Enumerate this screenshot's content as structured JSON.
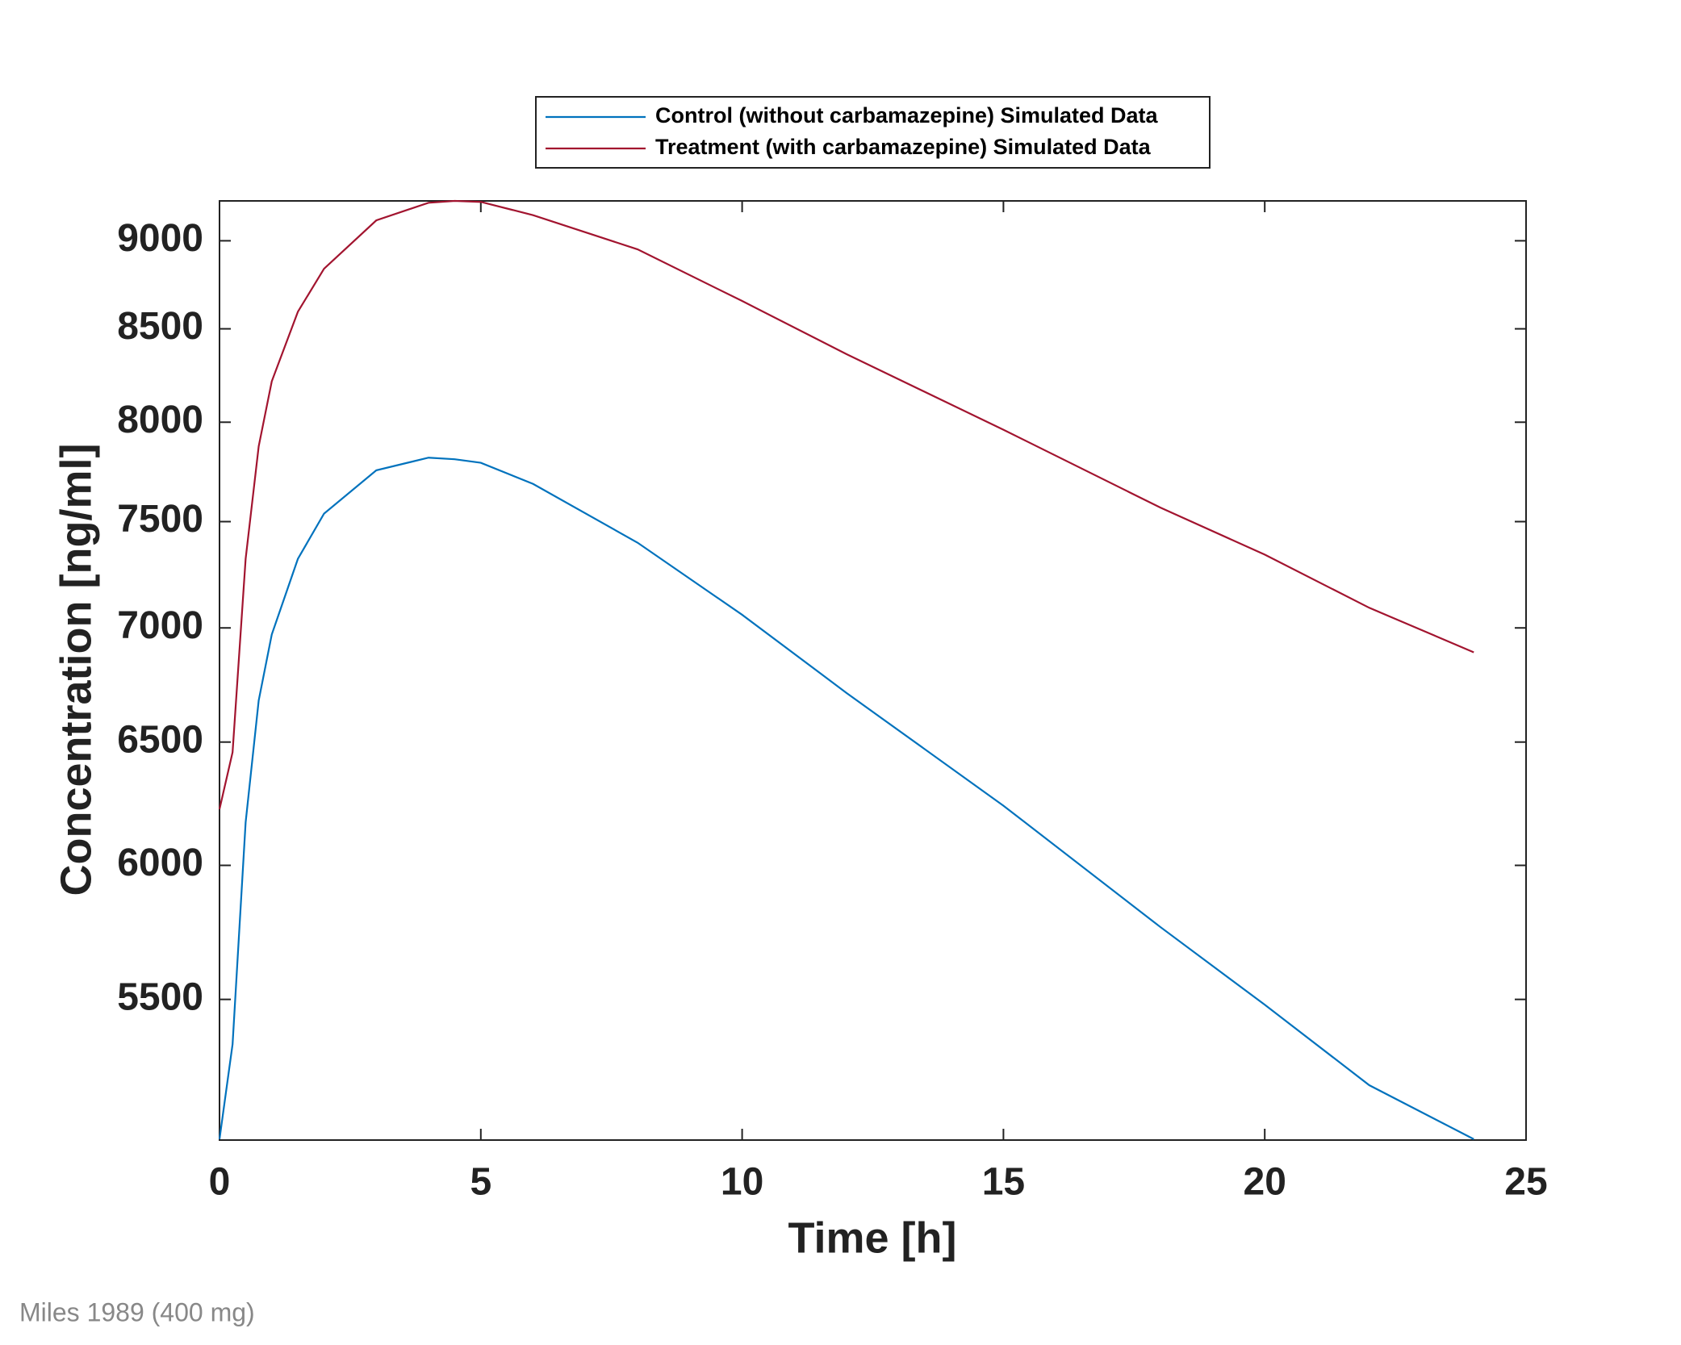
{
  "chart_data": {
    "type": "line",
    "xlabel": "Time [h]",
    "ylabel": "Concentration [ng/ml]",
    "footnote": "Miles 1989 (400 mg)",
    "x": [
      0,
      0.25,
      0.5,
      0.75,
      1,
      1.5,
      2,
      3,
      4,
      4.5,
      5,
      6,
      8,
      10,
      12,
      15,
      18,
      20,
      22,
      24
    ],
    "series": [
      {
        "name": "Control (without carbamazepine) Simulated Data",
        "color": "#0072bd",
        "values": [
          5023,
          5342,
          6170,
          6678,
          6970,
          7321,
          7539,
          7754,
          7818,
          7810,
          7792,
          7686,
          7398,
          7060,
          6710,
          6237,
          5765,
          5481,
          5202,
          5023
        ]
      },
      {
        "name": "Treatment (with carbamazepine) Simulated Data",
        "color": "#a2142f",
        "values": [
          6223,
          6457,
          7321,
          7876,
          8215,
          8595,
          8838,
          9120,
          9225,
          9236,
          9230,
          9151,
          8950,
          8655,
          8361,
          7961,
          7569,
          7341,
          7092,
          6890
        ]
      }
    ],
    "xlim": [
      0,
      25
    ],
    "xticks": [
      0,
      5,
      10,
      15,
      20,
      25
    ],
    "ylim": [
      5020,
      9236
    ],
    "yticks": [
      5500,
      6000,
      6500,
      7000,
      7500,
      8000,
      8500,
      9000
    ],
    "ylog": true,
    "legend": "top"
  }
}
